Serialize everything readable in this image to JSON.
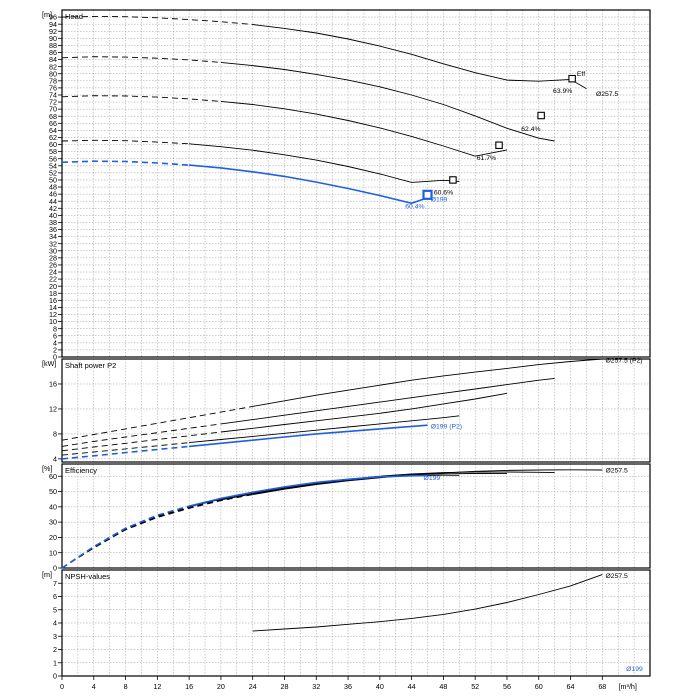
{
  "chart_data": [
    {
      "id": "head",
      "type": "line",
      "title": "Head",
      "unit": "[m]",
      "ylim": [
        0,
        98
      ],
      "yticks": [
        0,
        2,
        4,
        6,
        8,
        10,
        12,
        14,
        16,
        18,
        20,
        22,
        24,
        26,
        28,
        30,
        32,
        34,
        36,
        38,
        40,
        42,
        44,
        46,
        48,
        50,
        52,
        54,
        56,
        58,
        60,
        62,
        64,
        66,
        68,
        70,
        72,
        74,
        76,
        78,
        80,
        82,
        84,
        86,
        88,
        90,
        92,
        94,
        96
      ],
      "grid": true,
      "series": [
        {
          "name": "Ø257.5",
          "color": "#000000",
          "x": [
            0,
            4,
            8,
            12,
            16,
            20,
            24,
            28,
            32,
            36,
            40,
            44,
            48,
            52,
            56,
            60,
            64,
            66
          ],
          "y": [
            96,
            96.2,
            96.1,
            95.8,
            95.3,
            94.7,
            93.9,
            92.8,
            91.5,
            89.8,
            87.8,
            85.5,
            82.8,
            80.3,
            78.2,
            77.9,
            78.4,
            75.8
          ],
          "dash_until": 24
        },
        {
          "name": "",
          "color": "#000000",
          "x": [
            0,
            4,
            8,
            12,
            16,
            20,
            24,
            28,
            32,
            36,
            40,
            44,
            48,
            52,
            56,
            60,
            62
          ],
          "y": [
            84.5,
            84.8,
            84.7,
            84.4,
            83.9,
            83.2,
            82.3,
            81.2,
            79.8,
            78.2,
            76.3,
            74.0,
            71.3,
            68.1,
            64.6,
            61.8,
            61.0
          ],
          "dash_until": 20
        },
        {
          "name": "",
          "color": "#000000",
          "x": [
            0,
            4,
            8,
            12,
            16,
            20,
            24,
            28,
            32,
            36,
            40,
            44,
            48,
            52,
            56
          ],
          "y": [
            73.5,
            73.8,
            73.7,
            73.4,
            72.9,
            72.2,
            71.3,
            70.1,
            68.6,
            66.8,
            64.7,
            62.3,
            59.6,
            56.7,
            58.5
          ],
          "dash_until": 20
        },
        {
          "name": "",
          "color": "#000000",
          "x": [
            0,
            4,
            8,
            12,
            16,
            20,
            24,
            28,
            32,
            36,
            40,
            44,
            48,
            50
          ],
          "y": [
            61,
            61.2,
            61.1,
            60.7,
            60.2,
            59.4,
            58.4,
            57.1,
            55.6,
            53.8,
            51.7,
            49.3,
            49.9,
            49.6
          ],
          "dash_until": 16
        },
        {
          "name": "Ø199",
          "color": "#1f5fe0",
          "x": [
            0,
            4,
            8,
            12,
            16,
            20,
            24,
            28,
            32,
            36,
            40,
            44,
            46
          ],
          "y": [
            55,
            55.3,
            55.2,
            54.8,
            54.2,
            53.4,
            52.3,
            51.0,
            49.4,
            47.6,
            45.6,
            43.4,
            45.0
          ],
          "dash_until": 16
        }
      ],
      "markers": [
        {
          "x": 64.2,
          "y": 78.6,
          "color": "#000000",
          "blue": false
        },
        {
          "x": 60.3,
          "y": 68.2,
          "color": "#000000",
          "blue": false
        },
        {
          "x": 55.0,
          "y": 59.8,
          "color": "#000000",
          "blue": false
        },
        {
          "x": 49.2,
          "y": 50.0,
          "color": "#000000",
          "blue": false
        },
        {
          "x": 46.0,
          "y": 45.8,
          "color": "#1f5fe0",
          "blue": true
        }
      ],
      "annotations": [
        {
          "text": "Eff",
          "x": 64.8,
          "y": 80.1,
          "color": "#000000"
        },
        {
          "text": "63.9%",
          "x": 61.8,
          "y": 75.2,
          "color": "#000000"
        },
        {
          "text": "Ø257.5",
          "x": 67.2,
          "y": 74.4,
          "color": "#000000"
        },
        {
          "text": "62.4%",
          "x": 57.8,
          "y": 64.5,
          "color": "#000000"
        },
        {
          "text": "61.7%",
          "x": 52.2,
          "y": 56.4,
          "color": "#000000"
        },
        {
          "text": "60.6%",
          "x": 46.8,
          "y": 46.6,
          "color": "#000000"
        },
        {
          "text": "Ø199",
          "x": 46.4,
          "y": 44.6,
          "color": "#1f5fe0"
        },
        {
          "text": "60.4%",
          "x": 43.2,
          "y": 42.6,
          "color": "#1f5fe0"
        }
      ]
    },
    {
      "id": "power",
      "type": "line",
      "title": "Shaft power P2",
      "unit": "[kW]",
      "ylim": [
        3.5,
        20
      ],
      "yticks": [
        4,
        8,
        12,
        16
      ],
      "grid": true,
      "series": [
        {
          "name": "Ø257.5 (P2)",
          "color": "#000000",
          "x": [
            0,
            4,
            8,
            12,
            16,
            20,
            24,
            28,
            32,
            36,
            40,
            44,
            48,
            52,
            56,
            60,
            64,
            68
          ],
          "y": [
            7,
            7.9,
            8.8,
            9.7,
            10.6,
            11.5,
            12.4,
            13.3,
            14.2,
            15.0,
            15.8,
            16.6,
            17.3,
            17.9,
            18.5,
            19.1,
            19.6,
            20.0
          ],
          "dash_until": 24
        },
        {
          "name": "",
          "color": "#000000",
          "x": [
            0,
            4,
            8,
            12,
            16,
            20,
            24,
            28,
            32,
            36,
            40,
            44,
            48,
            52,
            56,
            60,
            62
          ],
          "y": [
            6,
            6.8,
            7.5,
            8.2,
            8.9,
            9.6,
            10.3,
            11.0,
            11.7,
            12.4,
            13.1,
            13.8,
            14.5,
            15.2,
            15.9,
            16.6,
            16.9
          ],
          "dash_until": 20
        },
        {
          "name": "",
          "color": "#000000",
          "x": [
            0,
            4,
            8,
            12,
            16,
            20,
            24,
            28,
            32,
            36,
            40,
            44,
            48,
            52,
            56
          ],
          "y": [
            5.3,
            5.9,
            6.5,
            7.1,
            7.7,
            8.3,
            8.9,
            9.5,
            10.1,
            10.7,
            11.3,
            12.0,
            12.8,
            13.6,
            14.5
          ],
          "dash_until": 20
        },
        {
          "name": "",
          "color": "#000000",
          "x": [
            0,
            4,
            8,
            12,
            16,
            20,
            24,
            28,
            32,
            36,
            40,
            44,
            48,
            50
          ],
          "y": [
            4.6,
            5.1,
            5.6,
            6.1,
            6.6,
            7.1,
            7.6,
            8.1,
            8.6,
            9.1,
            9.6,
            10.1,
            10.6,
            10.9
          ],
          "dash_until": 16
        },
        {
          "name": "Ø199 (P2)",
          "color": "#1f5fe0",
          "x": [
            0,
            4,
            8,
            12,
            16,
            20,
            24,
            28,
            32,
            36,
            40,
            44,
            46
          ],
          "y": [
            4.0,
            4.5,
            5.0,
            5.5,
            6.0,
            6.5,
            7.0,
            7.5,
            8.0,
            8.4,
            8.8,
            9.2,
            9.4
          ],
          "dash_until": 16
        }
      ],
      "annotations": [
        {
          "text": "Ø257.5 (P2)",
          "x": 68.4,
          "y": 19.8,
          "color": "#000000"
        },
        {
          "text": "Ø199 (P2)",
          "x": 46.4,
          "y": 9.3,
          "color": "#1f5fe0"
        }
      ]
    },
    {
      "id": "efficiency",
      "type": "line",
      "title": "Efficiency",
      "unit": "[%]",
      "ylim": [
        0,
        68
      ],
      "yticks": [
        0,
        10,
        20,
        30,
        40,
        50,
        60
      ],
      "grid": true,
      "series": [
        {
          "name": "Ø257.5",
          "color": "#000000",
          "x": [
            0,
            4,
            8,
            12,
            16,
            20,
            24,
            28,
            32,
            36,
            40,
            44,
            48,
            52,
            56,
            60,
            64,
            68
          ],
          "y": [
            0,
            13,
            25,
            33,
            39,
            44,
            48,
            51.5,
            54.5,
            57,
            59,
            60.8,
            62.2,
            63.2,
            63.8,
            64.1,
            64.2,
            64.1
          ],
          "dash_until": 24
        },
        {
          "name": "",
          "color": "#000000",
          "x": [
            0,
            4,
            8,
            12,
            16,
            20,
            24,
            28,
            32,
            36,
            40,
            44,
            48,
            52,
            56,
            60,
            62
          ],
          "y": [
            0,
            14,
            26,
            34,
            40,
            45,
            49,
            52.5,
            55.5,
            58,
            60,
            61.5,
            62.4,
            62.7,
            62.8,
            62.6,
            62.4
          ],
          "dash_until": 20
        },
        {
          "name": "",
          "color": "#000000",
          "x": [
            0,
            4,
            8,
            12,
            16,
            20,
            24,
            28,
            32,
            36,
            40,
            44,
            48,
            52,
            56
          ],
          "y": [
            0,
            13.5,
            25.5,
            33.5,
            39.5,
            44.5,
            48.5,
            52,
            55,
            57.5,
            59.5,
            61,
            61.6,
            61.8,
            61.7
          ],
          "dash_until": 20
        },
        {
          "name": "",
          "color": "#000000",
          "x": [
            0,
            4,
            8,
            12,
            16,
            20,
            24,
            28,
            32,
            36,
            40,
            44,
            48,
            50
          ],
          "y": [
            0,
            14,
            26,
            34,
            40,
            45,
            49,
            52.5,
            55.5,
            57.8,
            59.6,
            60.5,
            60.7,
            60.6
          ],
          "dash_until": 16
        },
        {
          "name": "Ø199",
          "color": "#1f5fe0",
          "x": [
            0,
            4,
            8,
            12,
            16,
            20,
            24,
            28,
            32,
            36,
            40,
            44,
            46
          ],
          "y": [
            0,
            14,
            26,
            34.5,
            40.5,
            45.5,
            49.5,
            53,
            56,
            58,
            59.6,
            60.3,
            60.4
          ],
          "dash_until": 16
        }
      ],
      "annotations": [
        {
          "text": "Ø257.5",
          "x": 68.4,
          "y": 64.1,
          "color": "#000000"
        },
        {
          "text": "Ø199",
          "x": 45.5,
          "y": 59.3,
          "color": "#1f5fe0"
        }
      ]
    },
    {
      "id": "npsh",
      "type": "line",
      "title": "NPSH-values",
      "unit": "[m]",
      "ylim": [
        0,
        8
      ],
      "yticks": [
        0,
        1,
        2,
        3,
        4,
        5,
        6,
        7
      ],
      "grid": true,
      "series": [
        {
          "name": "Ø257.5",
          "color": "#000000",
          "x": [
            24,
            28,
            32,
            36,
            40,
            44,
            48,
            52,
            56,
            60,
            64,
            68
          ],
          "y": [
            3.4,
            3.55,
            3.7,
            3.9,
            4.1,
            4.35,
            4.65,
            5.05,
            5.55,
            6.15,
            6.8,
            7.65
          ],
          "dash_until": 0
        }
      ],
      "annotations": [
        {
          "text": "Ø257.5",
          "x": 68.4,
          "y": 7.6,
          "color": "#000000"
        },
        {
          "text": "Ø199",
          "x": 71.0,
          "y": 0.55,
          "color": "#1f5fe0"
        }
      ]
    }
  ],
  "xaxis": {
    "ticks": [
      0,
      4,
      8,
      12,
      16,
      20,
      24,
      28,
      32,
      36,
      40,
      44,
      48,
      52,
      56,
      60,
      64,
      68
    ],
    "unit": "[m³/h]",
    "xlim": [
      0,
      74
    ]
  },
  "colors": {
    "black_curve": "#000000",
    "blue_curve": "#1f5fe0",
    "grid": "#9a9a9a",
    "frame": "#000000"
  }
}
